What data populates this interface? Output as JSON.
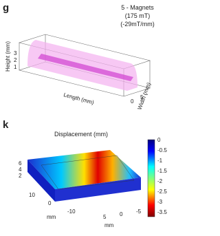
{
  "panel_g": {
    "label": "g",
    "annotation": [
      "5 - Magnets",
      "(175 mT)",
      "(-29mT/mm)"
    ],
    "z_label": "Height (mm)",
    "z_ticks": [
      "1",
      "2",
      "3"
    ],
    "x_label": "Length (mm)",
    "y_label": "Width (mm)",
    "y_ticks": [
      "0",
      "5"
    ]
  },
  "panel_k": {
    "label": "k",
    "title": "Displacement (mm)",
    "colorbar_ticks": [
      "0",
      "-0.5",
      "-1",
      "-1.5",
      "-2",
      "-2.5",
      "-3",
      "-3.5"
    ],
    "z_ticks": [
      "6",
      "4",
      "2"
    ],
    "y_ticks": [
      "10",
      "0",
      "-10"
    ],
    "x_ticks": [
      "5",
      "0",
      "-5"
    ],
    "unit_labels": [
      "mm",
      "mm"
    ]
  }
}
